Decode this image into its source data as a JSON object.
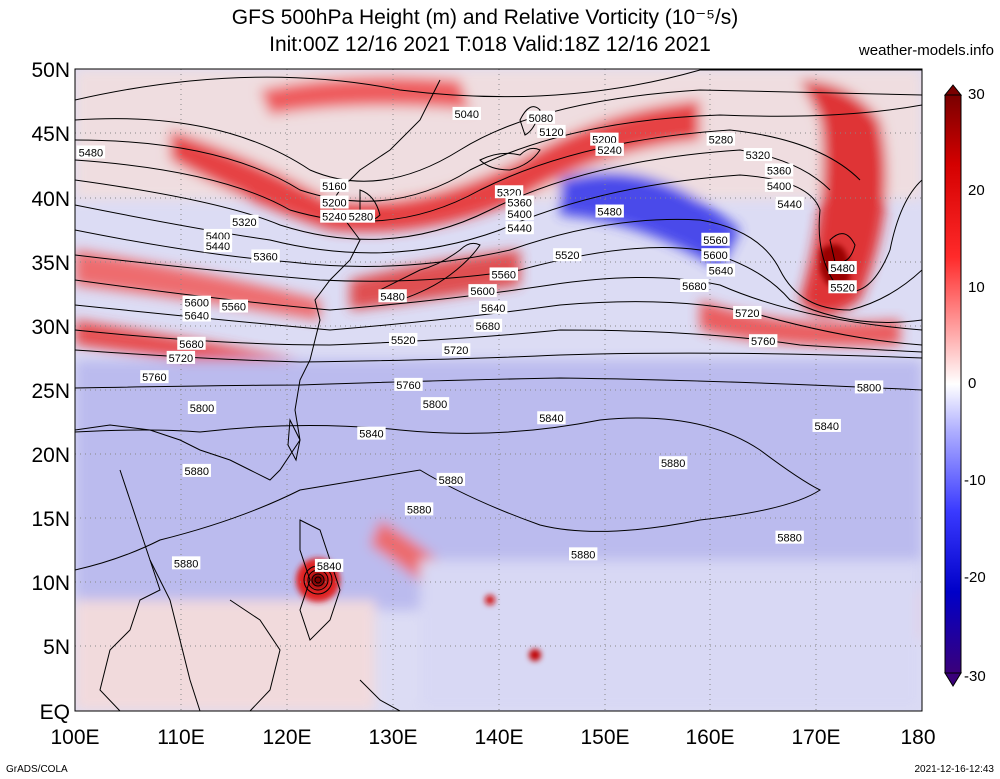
{
  "header": {
    "title_line1": "GFS 500hPa Height (m) and Relative Vorticity (10⁻⁵/s)",
    "title_line2": "Init:00Z 12/16 2021 T:018 Valid:18Z 12/16 2021",
    "site": "weather-models.info"
  },
  "map": {
    "lat_labels": [
      "50N",
      "45N",
      "40N",
      "35N",
      "30N",
      "25N",
      "20N",
      "15N",
      "10N",
      "5N",
      "EQ"
    ],
    "lon_labels": [
      "100E",
      "110E",
      "120E",
      "130E",
      "140E",
      "150E",
      "160E",
      "170E",
      "180"
    ],
    "contour_labels": [
      {
        "text": "5040",
        "lon": 137,
        "lat": 46.5
      },
      {
        "text": "5080",
        "lon": 144,
        "lat": 46.2
      },
      {
        "text": "5120",
        "lon": 145,
        "lat": 45.1
      },
      {
        "text": "5200",
        "lon": 150,
        "lat": 44.5
      },
      {
        "text": "5240",
        "lon": 150.5,
        "lat": 43.7
      },
      {
        "text": "5280",
        "lon": 161,
        "lat": 44.5
      },
      {
        "text": "5320",
        "lon": 164.5,
        "lat": 43.3
      },
      {
        "text": "5360",
        "lon": 166.5,
        "lat": 42.1
      },
      {
        "text": "5400",
        "lon": 166.5,
        "lat": 40.9
      },
      {
        "text": "5440",
        "lon": 167.5,
        "lat": 39.5
      },
      {
        "text": "5480",
        "lon": 101.5,
        "lat": 43.5
      },
      {
        "text": "5160",
        "lon": 124.5,
        "lat": 40.9
      },
      {
        "text": "5200",
        "lon": 124.5,
        "lat": 39.6
      },
      {
        "text": "5240",
        "lon": 124.5,
        "lat": 38.5
      },
      {
        "text": "5280",
        "lon": 127,
        "lat": 38.5
      },
      {
        "text": "5320",
        "lon": 116,
        "lat": 38.1
      },
      {
        "text": "5400",
        "lon": 113.5,
        "lat": 37
      },
      {
        "text": "5440",
        "lon": 113.5,
        "lat": 36.2
      },
      {
        "text": "5360",
        "lon": 118,
        "lat": 35.4
      },
      {
        "text": "5320",
        "lon": 141,
        "lat": 40.4
      },
      {
        "text": "5360",
        "lon": 142,
        "lat": 39.6
      },
      {
        "text": "5400",
        "lon": 142,
        "lat": 38.7
      },
      {
        "text": "5440",
        "lon": 142,
        "lat": 37.6
      },
      {
        "text": "5480",
        "lon": 150.5,
        "lat": 38.9
      },
      {
        "text": "5520",
        "lon": 146.5,
        "lat": 35.5
      },
      {
        "text": "5480",
        "lon": 130,
        "lat": 32.3
      },
      {
        "text": "5520",
        "lon": 131,
        "lat": 28.9
      },
      {
        "text": "5560",
        "lon": 140.5,
        "lat": 34
      },
      {
        "text": "5600",
        "lon": 138.5,
        "lat": 32.7
      },
      {
        "text": "5640",
        "lon": 139.5,
        "lat": 31.4
      },
      {
        "text": "5680",
        "lon": 139,
        "lat": 30
      },
      {
        "text": "5720",
        "lon": 136,
        "lat": 28.1
      },
      {
        "text": "5600",
        "lon": 111.5,
        "lat": 31.8
      },
      {
        "text": "5640",
        "lon": 111.5,
        "lat": 30.8
      },
      {
        "text": "5560",
        "lon": 115,
        "lat": 31.5
      },
      {
        "text": "5680",
        "lon": 111,
        "lat": 28.6
      },
      {
        "text": "5720",
        "lon": 110,
        "lat": 27.5
      },
      {
        "text": "5760",
        "lon": 107.5,
        "lat": 26
      },
      {
        "text": "5800",
        "lon": 112,
        "lat": 23.6
      },
      {
        "text": "5840",
        "lon": 128,
        "lat": 21.6
      },
      {
        "text": "5760",
        "lon": 131.5,
        "lat": 25.4
      },
      {
        "text": "5800",
        "lon": 134,
        "lat": 23.9
      },
      {
        "text": "5840",
        "lon": 145,
        "lat": 22.8
      },
      {
        "text": "5560",
        "lon": 160.5,
        "lat": 36.7
      },
      {
        "text": "5600",
        "lon": 160.5,
        "lat": 35.5
      },
      {
        "text": "5640",
        "lon": 161,
        "lat": 34.3
      },
      {
        "text": "5680",
        "lon": 158.5,
        "lat": 33.1
      },
      {
        "text": "5720",
        "lon": 163.5,
        "lat": 31
      },
      {
        "text": "5760",
        "lon": 165,
        "lat": 28.8
      },
      {
        "text": "5800",
        "lon": 175,
        "lat": 25.2
      },
      {
        "text": "5840",
        "lon": 171,
        "lat": 22.2
      },
      {
        "text": "5480",
        "lon": 172.5,
        "lat": 34.5
      },
      {
        "text": "5520",
        "lon": 172.5,
        "lat": 33
      },
      {
        "text": "5880",
        "lon": 111.5,
        "lat": 18.7
      },
      {
        "text": "5880",
        "lon": 135.5,
        "lat": 18
      },
      {
        "text": "5880",
        "lon": 132.5,
        "lat": 15.7
      },
      {
        "text": "5880",
        "lon": 156.5,
        "lat": 19.3
      },
      {
        "text": "5880",
        "lon": 167.5,
        "lat": 13.5
      },
      {
        "text": "5880",
        "lon": 148,
        "lat": 12.2
      },
      {
        "text": "5880",
        "lon": 110.5,
        "lat": 11.5
      },
      {
        "text": "5840",
        "lon": 124,
        "lat": 11.3
      }
    ]
  },
  "colorbar": {
    "labels": [
      "30",
      "20",
      "10",
      "0",
      "-10",
      "-20",
      "-30"
    ],
    "colors": [
      "#7a0000",
      "#c00000",
      "#f00000",
      "#ff4040",
      "#ff8080",
      "#ffc0c0",
      "#ffffff",
      "#c0c0ff",
      "#8080ff",
      "#4040ff",
      "#0000e0",
      "#0000a0",
      "#3a007a"
    ]
  },
  "footer": {
    "credit": "GrADS/COLA",
    "timestamp": "2021-12-16-12:43"
  }
}
